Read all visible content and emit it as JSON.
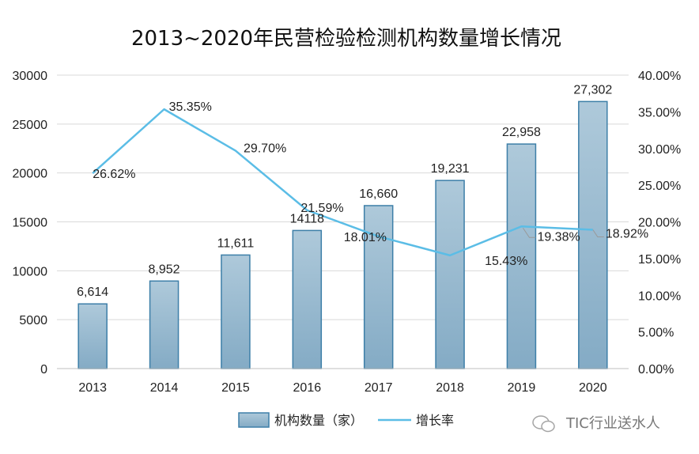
{
  "chart_data": {
    "type": "bar",
    "title": "2013~2020年民营检验检测机构数量增长情况",
    "categories": [
      "2013",
      "2014",
      "2015",
      "2016",
      "2017",
      "2018",
      "2019",
      "2020"
    ],
    "series": [
      {
        "name": "机构数量（家）",
        "type": "bar",
        "axis": "left",
        "values": [
          6614,
          8952,
          11611,
          14118,
          16660,
          19231,
          22958,
          27302
        ],
        "labels": [
          "6,614",
          "8,952",
          "11,611",
          "14118",
          "16,660",
          "19,231",
          "22,958",
          "27,302"
        ]
      },
      {
        "name": "增长率",
        "type": "line",
        "axis": "right",
        "values": [
          26.62,
          35.35,
          29.7,
          21.59,
          18.01,
          15.43,
          19.38,
          18.92
        ],
        "labels": [
          "26.62%",
          "35.35%",
          "29.70%",
          "21.59%",
          "18.01%",
          "15.43%",
          "19.38%",
          "18.92%"
        ]
      }
    ],
    "y_left": {
      "ylim": [
        0,
        30000
      ],
      "ticks": [
        "0",
        "5000",
        "10000",
        "15000",
        "20000",
        "25000",
        "30000"
      ]
    },
    "y_right": {
      "ylim": [
        0,
        40
      ],
      "ticks": [
        "0.00%",
        "5.00%",
        "10.00%",
        "15.00%",
        "20.00%",
        "25.00%",
        "30.00%",
        "35.00%",
        "40.00%"
      ]
    },
    "grid": true,
    "legend_position": "bottom",
    "colors": {
      "bar_fill_top": "#a9c6d8",
      "bar_fill_bottom": "#7fa9c4",
      "bar_stroke": "#3d7fa8",
      "line": "#5bbde6",
      "rate_label": "#ee1111",
      "grid": "#d9d9d9"
    }
  },
  "watermark": {
    "text": "TIC行业送水人"
  }
}
